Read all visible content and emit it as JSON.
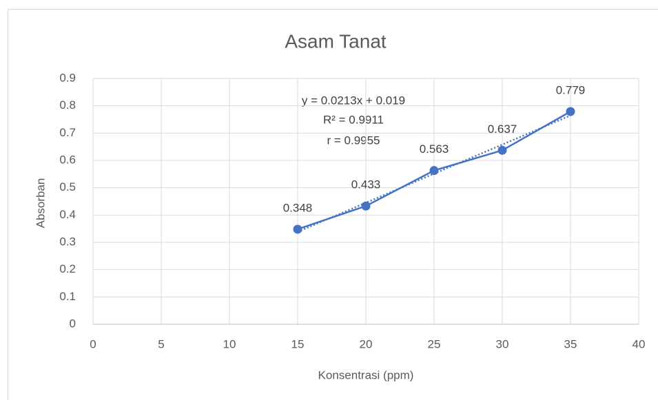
{
  "chart_data": {
    "type": "line",
    "title": "Asam Tanat",
    "x_label": "Konsentrasi (ppm)",
    "y_label": "Absorban",
    "x": [
      15,
      20,
      25,
      30,
      35
    ],
    "series": [
      {
        "name": "Absorban",
        "color": "#4472c4",
        "values": [
          0.348,
          0.433,
          0.563,
          0.637,
          0.779
        ]
      }
    ],
    "trendline": {
      "slope": 0.0213,
      "intercept": 0.019,
      "style": "dotted"
    },
    "annotations": [
      "y = 0.0213x + 0.019",
      "R² = 0.9911",
      "r = 0.9955"
    ],
    "xlim": [
      0,
      40
    ],
    "xticks": [
      0,
      5,
      10,
      15,
      20,
      25,
      30,
      35,
      40
    ],
    "ylim": [
      0,
      0.9
    ],
    "yticks": [
      0,
      0.1,
      0.2,
      0.3,
      0.4,
      0.5,
      0.6,
      0.7,
      0.8,
      0.9
    ],
    "grid": true,
    "data_labels": true
  }
}
